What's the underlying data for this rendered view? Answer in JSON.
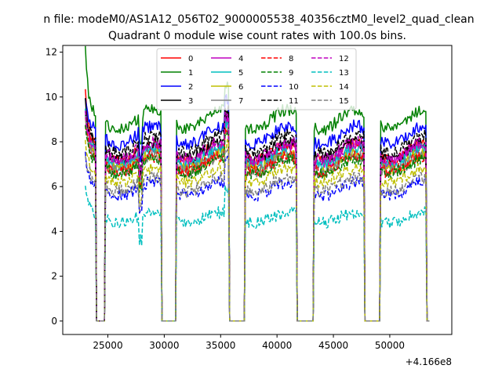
{
  "suptitle": "n file: modeM0/AS1A12_056T02_9000005538_40356cztM0_level2_quad_clean",
  "chart_data": {
    "type": "line",
    "title": "Quadrant 0 module wise count rates with 100.0s bins.",
    "xlabel": "",
    "ylabel": "",
    "x_offset_label": "+4.166e8",
    "xlim": [
      21000,
      55500
    ],
    "ylim": [
      -0.6,
      12.3
    ],
    "x_ticks": [
      25000,
      30000,
      35000,
      40000,
      45000,
      50000
    ],
    "x_tick_labels": [
      "25000",
      "30000",
      "35000",
      "40000",
      "45000",
      "50000"
    ],
    "y_ticks": [
      0,
      2,
      4,
      6,
      8,
      10,
      12
    ],
    "y_tick_labels": [
      "0",
      "2",
      "4",
      "6",
      "8",
      "10",
      "12"
    ],
    "grid": false,
    "legend_position": "upper center",
    "x_range": [
      23000,
      53500
    ],
    "bin_seconds": 100,
    "gaps": [
      [
        24000,
        24700
      ],
      [
        29800,
        31000
      ],
      [
        35800,
        37100
      ],
      [
        41800,
        43200
      ],
      [
        47800,
        49100
      ],
      [
        53300,
        53600
      ]
    ],
    "series": [
      {
        "name": "0",
        "color": "#ff0000",
        "dash": "solid",
        "base": 7.5,
        "start": 10.0
      },
      {
        "name": "1",
        "color": "#008000",
        "dash": "solid",
        "base": 9.0,
        "start": 11.6
      },
      {
        "name": "2",
        "color": "#0000ff",
        "dash": "solid",
        "base": 8.3,
        "start": 9.6
      },
      {
        "name": "3",
        "color": "#000000",
        "dash": "solid",
        "base": 7.6,
        "start": 9.4
      },
      {
        "name": "4",
        "color": "#bf00bf",
        "dash": "solid",
        "base": 7.4,
        "start": 9.2
      },
      {
        "name": "5",
        "color": "#00bfbf",
        "dash": "solid",
        "base": 7.3,
        "start": 9.0
      },
      {
        "name": "6",
        "color": "#bfbf00",
        "dash": "solid",
        "base": 7.1,
        "start": 8.9
      },
      {
        "name": "7",
        "color": "#808080",
        "dash": "solid",
        "base": 7.0,
        "start": 8.8
      },
      {
        "name": "8",
        "color": "#ff0000",
        "dash": "dashed",
        "base": 7.0,
        "start": 8.6
      },
      {
        "name": "9",
        "color": "#008000",
        "dash": "dashed",
        "base": 6.9,
        "start": 8.4
      },
      {
        "name": "10",
        "color": "#0000ff",
        "dash": "dashed",
        "base": 5.9,
        "start": 7.0
      },
      {
        "name": "11",
        "color": "#000000",
        "dash": "dashed",
        "base": 7.9,
        "start": 9.0
      },
      {
        "name": "12",
        "color": "#bf00bf",
        "dash": "dashed",
        "base": 7.6,
        "start": 8.8
      },
      {
        "name": "13",
        "color": "#00bfbf",
        "dash": "dashed",
        "base": 4.6,
        "start": 5.9
      },
      {
        "name": "14",
        "color": "#bfbf00",
        "dash": "dashed",
        "base": 6.5,
        "start": 7.6
      },
      {
        "name": "15",
        "color": "#808080",
        "dash": "dashed",
        "base": 6.1,
        "start": 7.2
      }
    ]
  }
}
